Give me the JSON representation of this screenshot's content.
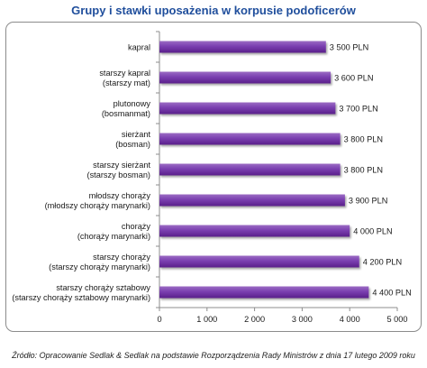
{
  "chart_data": {
    "type": "bar",
    "orientation": "horizontal",
    "title": "Grupy i stawki uposażenia w korpusie podoficerów",
    "categories": [
      [
        "kapral"
      ],
      [
        "starszy kapral",
        "(starszy mat)"
      ],
      [
        "plutonowy",
        "(bosmanmat)"
      ],
      [
        "sierżant",
        "(bosman)"
      ],
      [
        "starszy sierżant",
        "(starszy bosman)"
      ],
      [
        "młodszy chorąży",
        "(młodszy chorąży marynarki)"
      ],
      [
        "chorąży",
        "(chorąży marynarki)"
      ],
      [
        "starszy chorąży",
        "(starszy chorąży marynarki)"
      ],
      [
        "starszy chorąży sztabowy",
        "(starszy chorąży sztabowy marynarki)"
      ]
    ],
    "values": [
      3500,
      3600,
      3700,
      3800,
      3800,
      3900,
      4000,
      4200,
      4400
    ],
    "value_labels": [
      "3 500 PLN",
      "3 600 PLN",
      "3 700 PLN",
      "3 800 PLN",
      "3 800 PLN",
      "3 900 PLN",
      "4 000 PLN",
      "4 200 PLN",
      "4 400 PLN"
    ],
    "xlim": [
      0,
      5000
    ],
    "x_ticks": [
      "0",
      "1 000",
      "2 000",
      "3 000",
      "4 000",
      "5 000"
    ],
    "grid": false,
    "legend": "none",
    "bar_color": "#7030a0"
  },
  "source": "Źródło: Opracowanie Sedlak & Sedlak na podstawie Rozporządzenia Rady Ministrów z dnia 17 lutego 2009 roku"
}
